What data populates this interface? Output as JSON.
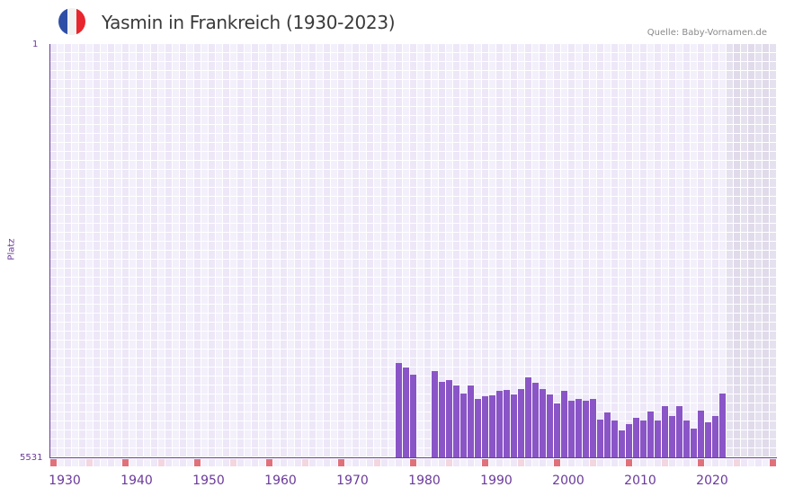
{
  "header": {
    "title": "Yasmin in Frankreich (1930-2023)",
    "source": "Quelle: Baby-Vornamen.de",
    "flag_colors": [
      "#2f4fa6",
      "#f2f2f2",
      "#e8262e"
    ]
  },
  "colors": {
    "bar": "#8a55c6",
    "axis": "#6a3a9a",
    "cell_a": "#f3f0fb",
    "cell_b": "#ede7f8",
    "future_a": "#e6e1ef",
    "future_b": "#e0daeb",
    "marker_strong": "#e0707a",
    "marker_pale": "#f3d6df"
  },
  "chart_data": {
    "type": "bar",
    "title": "Yasmin in Frankreich (1930-2023)",
    "xlabel": "",
    "ylabel": "Platz",
    "y_axis_inverted": true,
    "ylim": [
      1,
      5531
    ],
    "y_tick_labels": [
      "1",
      "5531"
    ],
    "x_tick_labels": [
      "1930",
      "1940",
      "1950",
      "1960",
      "1970",
      "1980",
      "1990",
      "2000",
      "2010",
      "2020"
    ],
    "x_range": [
      1928,
      2028
    ],
    "future_shaded_from": 2022,
    "grid": true,
    "x": [
      1976,
      1977,
      1978,
      1981,
      1982,
      1983,
      1984,
      1985,
      1986,
      1987,
      1988,
      1989,
      1990,
      1991,
      1992,
      1993,
      1994,
      1995,
      1996,
      1997,
      1998,
      1999,
      2000,
      2001,
      2002,
      2003,
      2004,
      2005,
      2006,
      2007,
      2008,
      2009,
      2010,
      2011,
      2012,
      2013,
      2014,
      2015,
      2016,
      2017,
      2018,
      2019,
      2020,
      2021
    ],
    "values": [
      4272,
      4332,
      4428,
      4380,
      4524,
      4500,
      4572,
      4680,
      4572,
      4752,
      4716,
      4704,
      4644,
      4632,
      4692,
      4620,
      4464,
      4536,
      4620,
      4692,
      4812,
      4644,
      4776,
      4752,
      4776,
      4752,
      5028,
      4932,
      5040,
      5172,
      5088,
      5004,
      5040,
      4920,
      5040,
      4848,
      4980,
      4848,
      5040,
      5148,
      4908,
      5064,
      4980,
      4680
    ]
  },
  "axis": {
    "y_top": "1",
    "y_bottom": "5531",
    "y_title": "Platz",
    "x_labels": [
      "1930",
      "1940",
      "1950",
      "1960",
      "1970",
      "1980",
      "1990",
      "2000",
      "2010",
      "2020"
    ]
  }
}
